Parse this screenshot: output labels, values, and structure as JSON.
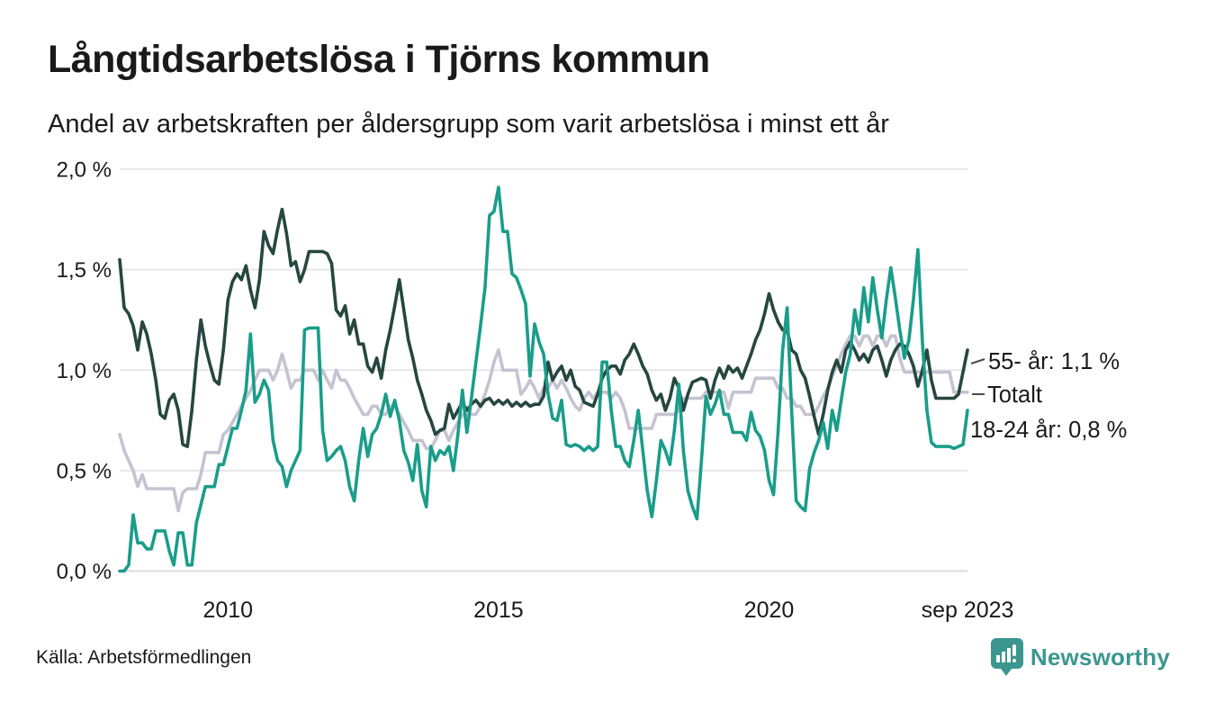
{
  "header": {
    "title": "Långtidsarbetslösa i Tjörns kommun",
    "subtitle": "Andel av arbetskraften per åldersgrupp som varit arbetslösa i minst ett år"
  },
  "footer": {
    "source": "Källa: Arbetsförmedlingen",
    "logo_text": "Newsworthy",
    "logo_color": "#3B9690"
  },
  "colors": {
    "text": "#1a1a1a",
    "gridline": "#e7e6eb",
    "baseline": "#dcdbe1",
    "connector": "#4a4a4a"
  },
  "chart_data": {
    "type": "line",
    "title": "Långtidsarbetslösa i Tjörns kommun",
    "subtitle": "Andel av arbetskraften per åldersgrupp som varit arbetslösa i minst ett år",
    "unit": "%",
    "grid": "horizontal-only",
    "legend_position": "right-end-labels",
    "x_axis": {
      "start": "2008-01",
      "end": "2023-09",
      "frequency": "monthly",
      "n_points": 189,
      "ticks": [
        {
          "label": "2010",
          "month_index": 24
        },
        {
          "label": "2015",
          "month_index": 84
        },
        {
          "label": "2020",
          "month_index": 144
        },
        {
          "label": "sep 2023",
          "month_index": 188
        }
      ]
    },
    "y_axis": {
      "min": 0,
      "max": 2,
      "ticks": [
        {
          "value": 0.0,
          "label": "0,0 %"
        },
        {
          "value": 0.5,
          "label": "0,5 %"
        },
        {
          "value": 1.0,
          "label": "1,0 %"
        },
        {
          "value": 1.5,
          "label": "1,5 %"
        },
        {
          "value": 2.0,
          "label": "2,0 %"
        }
      ]
    },
    "series": [
      {
        "name": "Totalt",
        "color": "#C5C3D1",
        "end_label": "Totalt",
        "end_dash": true,
        "last_value": 0.9,
        "values": [
          0.68,
          0.6,
          0.55,
          0.5,
          0.42,
          0.48,
          0.41,
          0.41,
          0.41,
          0.41,
          0.41,
          0.41,
          0.41,
          0.3,
          0.39,
          0.41,
          0.41,
          0.41,
          0.48,
          0.59,
          0.59,
          0.59,
          0.59,
          0.68,
          0.7,
          0.74,
          0.78,
          0.82,
          0.86,
          0.9,
          0.95,
          1.0,
          1.0,
          1.0,
          0.95,
          1.0,
          1.08,
          1.0,
          0.91,
          0.95,
          0.95,
          1.0,
          1.0,
          1.0,
          0.95,
          1.0,
          0.95,
          0.91,
          1.0,
          0.95,
          0.95,
          0.91,
          0.86,
          0.82,
          0.78,
          0.78,
          0.82,
          0.82,
          0.78,
          0.78,
          0.82,
          0.82,
          0.78,
          0.74,
          0.7,
          0.65,
          0.65,
          0.65,
          0.61,
          0.61,
          0.65,
          0.7,
          0.7,
          0.65,
          0.7,
          0.74,
          0.78,
          0.78,
          0.78,
          0.78,
          0.82,
          0.88,
          0.95,
          1.04,
          1.1,
          1.0,
          1.0,
          1.0,
          1.0,
          0.88,
          0.91,
          0.95,
          0.91,
          0.86,
          0.91,
          0.91,
          0.95,
          0.91,
          0.95,
          0.91,
          0.86,
          0.82,
          0.8,
          0.86,
          0.89,
          0.86,
          0.89,
          0.89,
          0.89,
          0.86,
          0.89,
          0.86,
          0.8,
          0.71,
          0.71,
          0.71,
          0.71,
          0.71,
          0.71,
          0.78,
          0.78,
          0.78,
          0.78,
          0.78,
          0.8,
          0.86,
          0.86,
          0.86,
          0.86,
          0.86,
          0.89,
          0.89,
          0.89,
          0.89,
          0.89,
          0.81,
          0.89,
          0.89,
          0.89,
          0.89,
          0.89,
          0.96,
          0.96,
          0.96,
          0.96,
          0.96,
          0.91,
          0.91,
          0.86,
          0.86,
          0.82,
          0.82,
          0.78,
          0.78,
          0.78,
          0.82,
          0.87,
          0.91,
          0.97,
          1.02,
          1.08,
          1.13,
          1.17,
          1.17,
          1.12,
          1.17,
          1.17,
          1.12,
          1.17,
          1.17,
          1.12,
          1.17,
          1.17,
          1.06,
          0.99,
          0.99,
          0.99,
          0.99,
          0.99,
          0.99,
          0.99,
          0.99,
          0.99,
          0.99,
          0.99,
          0.89,
          0.89,
          0.89,
          0.89
        ]
      },
      {
        "name": "55- år",
        "color": "#26473F",
        "end_label": "55- år: 1,1 %",
        "end_dash": true,
        "last_value": 1.1,
        "values": [
          1.55,
          1.31,
          1.28,
          1.22,
          1.1,
          1.24,
          1.18,
          1.08,
          0.95,
          0.78,
          0.76,
          0.85,
          0.88,
          0.8,
          0.63,
          0.62,
          0.8,
          1.05,
          1.25,
          1.12,
          1.03,
          0.95,
          0.93,
          1.1,
          1.35,
          1.44,
          1.48,
          1.45,
          1.52,
          1.4,
          1.31,
          1.45,
          1.69,
          1.62,
          1.58,
          1.7,
          1.8,
          1.68,
          1.52,
          1.54,
          1.44,
          1.5,
          1.59,
          1.59,
          1.59,
          1.59,
          1.58,
          1.53,
          1.3,
          1.27,
          1.32,
          1.18,
          1.25,
          1.13,
          1.13,
          1.02,
          0.99,
          1.06,
          0.96,
          1.1,
          1.2,
          1.32,
          1.45,
          1.3,
          1.15,
          1.06,
          0.95,
          0.88,
          0.8,
          0.75,
          0.68,
          0.7,
          0.71,
          0.83,
          0.76,
          0.8,
          0.84,
          0.8,
          0.83,
          0.85,
          0.82,
          0.85,
          0.86,
          0.83,
          0.85,
          0.83,
          0.85,
          0.82,
          0.84,
          0.82,
          0.84,
          0.82,
          0.83,
          0.83,
          0.87,
          1.04,
          0.95,
          0.99,
          1.02,
          0.95,
          1.0,
          0.92,
          0.9,
          0.84,
          0.83,
          0.82,
          0.88,
          0.96,
          1.0,
          1.02,
          1.02,
          0.98,
          1.05,
          1.08,
          1.13,
          1.08,
          1.02,
          0.98,
          0.9,
          0.85,
          0.88,
          0.8,
          0.86,
          0.96,
          0.91,
          0.8,
          0.88,
          0.94,
          0.95,
          0.96,
          0.95,
          0.86,
          0.95,
          1.01,
          0.96,
          1.02,
          0.99,
          1.01,
          0.96,
          1.02,
          1.08,
          1.15,
          1.2,
          1.28,
          1.38,
          1.3,
          1.24,
          1.2,
          1.2,
          1.1,
          1.08,
          1.0,
          0.96,
          0.87,
          0.77,
          0.68,
          0.78,
          0.9,
          0.99,
          1.05,
          0.99,
          1.1,
          1.14,
          1.1,
          1.05,
          1.08,
          1.04,
          1.1,
          1.12,
          1.05,
          0.97,
          1.05,
          1.1,
          1.13,
          1.12,
          1.08,
          1.02,
          0.92,
          1.0,
          1.1,
          0.95,
          0.86,
          0.86,
          0.86,
          0.86,
          0.86,
          0.88,
          0.99,
          1.1
        ]
      },
      {
        "name": "18-24 år",
        "color": "#1A9D8B",
        "end_label": "18-24 år: 0,8 %",
        "end_dash": false,
        "last_value": 0.8,
        "values": [
          0.0,
          0.0,
          0.03,
          0.28,
          0.14,
          0.14,
          0.11,
          0.11,
          0.2,
          0.2,
          0.2,
          0.1,
          0.03,
          0.19,
          0.19,
          0.03,
          0.03,
          0.24,
          0.33,
          0.42,
          0.42,
          0.42,
          0.53,
          0.53,
          0.62,
          0.71,
          0.71,
          0.8,
          0.9,
          1.18,
          0.84,
          0.88,
          0.95,
          0.9,
          0.65,
          0.55,
          0.52,
          0.42,
          0.5,
          0.55,
          0.6,
          1.2,
          1.21,
          1.21,
          1.21,
          0.7,
          0.55,
          0.57,
          0.6,
          0.62,
          0.55,
          0.42,
          0.35,
          0.55,
          0.71,
          0.57,
          0.68,
          0.71,
          0.78,
          0.88,
          0.77,
          0.85,
          0.75,
          0.6,
          0.54,
          0.45,
          0.63,
          0.4,
          0.32,
          0.62,
          0.55,
          0.6,
          0.58,
          0.62,
          0.5,
          0.68,
          0.9,
          0.69,
          0.86,
          1.04,
          1.22,
          1.41,
          1.77,
          1.79,
          1.91,
          1.69,
          1.69,
          1.48,
          1.46,
          1.4,
          1.33,
          0.97,
          1.23,
          1.14,
          1.08,
          0.88,
          0.76,
          0.75,
          0.85,
          0.63,
          0.62,
          0.63,
          0.62,
          0.6,
          0.62,
          0.6,
          0.62,
          1.04,
          1.04,
          0.8,
          0.62,
          0.62,
          0.55,
          0.52,
          0.65,
          0.8,
          0.6,
          0.4,
          0.27,
          0.45,
          0.65,
          0.6,
          0.53,
          0.7,
          0.93,
          0.6,
          0.4,
          0.32,
          0.26,
          0.55,
          0.87,
          0.78,
          0.83,
          0.9,
          0.78,
          0.78,
          0.69,
          0.69,
          0.69,
          0.65,
          0.79,
          0.7,
          0.67,
          0.6,
          0.45,
          0.38,
          0.7,
          1.1,
          1.31,
          0.8,
          0.35,
          0.32,
          0.3,
          0.51,
          0.59,
          0.65,
          0.74,
          0.61,
          0.8,
          0.7,
          0.85,
          0.99,
          1.08,
          1.3,
          1.18,
          1.41,
          1.24,
          1.46,
          1.3,
          1.16,
          1.35,
          1.51,
          1.36,
          1.2,
          1.06,
          1.15,
          1.35,
          1.6,
          1.14,
          0.8,
          0.64,
          0.62,
          0.62,
          0.62,
          0.62,
          0.61,
          0.62,
          0.63,
          0.8
        ]
      }
    ]
  }
}
